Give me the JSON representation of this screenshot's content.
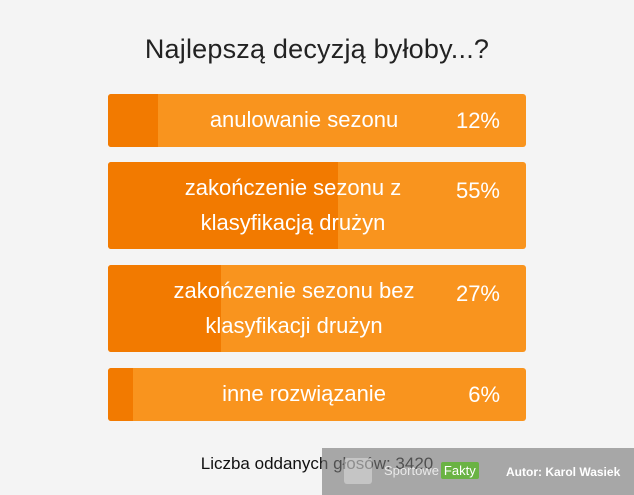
{
  "poll": {
    "title": "Najlepszą decyzją byłoby...?",
    "options": [
      {
        "label": "anulowanie sezonu",
        "percent_label": "12%",
        "percent": 12
      },
      {
        "label": "zakończenie sezonu z klasyfikacją drużyn",
        "percent_label": "55%",
        "percent": 55
      },
      {
        "label": "zakończenie sezonu bez klasyfikacji drużyn",
        "percent_label": "27%",
        "percent": 27
      },
      {
        "label": "inne rozwiązanie",
        "percent_label": "6%",
        "percent": 6
      }
    ],
    "votes_text": "Liczba oddanych głosów: 3420"
  },
  "watermark": {
    "brand": "Sportowe",
    "brand_highlight": "Fakty",
    "author": "Autor: Karol Wasiek"
  },
  "colors": {
    "bar_base": "#f9941e",
    "bar_fill": "#f27a00",
    "background": "#f4f4f4"
  }
}
